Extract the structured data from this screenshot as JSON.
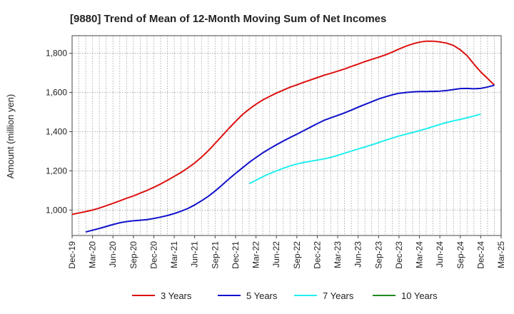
{
  "chart_data": {
    "type": "line",
    "title": "[9880]  Trend of Mean of 12-Month Moving Sum of Net Incomes",
    "ylabel": "Amount (million yen)",
    "xlabel": "",
    "ylim": [
      870,
      1890
    ],
    "yticks": [
      1000,
      1200,
      1400,
      1600,
      1800
    ],
    "ytick_labels": [
      "1,000",
      "1,200",
      "1,400",
      "1,600",
      "1,800"
    ],
    "x_start": "Dec-19",
    "x_months_total": 63,
    "xtick_labels": [
      "Dec-19",
      "Mar-20",
      "Jun-20",
      "Sep-20",
      "Dec-20",
      "Mar-21",
      "Jun-21",
      "Sep-21",
      "Dec-21",
      "Mar-22",
      "Jun-22",
      "Sep-22",
      "Dec-22",
      "Mar-23",
      "Jun-23",
      "Sep-23",
      "Dec-23",
      "Mar-24",
      "Jun-24",
      "Sep-24",
      "Dec-24",
      "Mar-25"
    ],
    "grid": true,
    "legend_position": "bottom",
    "series": [
      {
        "name": "3 Years",
        "color": "#dd1111",
        "start": "Dec-19",
        "values": [
          978,
          985,
          992,
          1000,
          1010,
          1022,
          1034,
          1047,
          1060,
          1072,
          1086,
          1100,
          1116,
          1133,
          1152,
          1172,
          1192,
          1215,
          1240,
          1270,
          1303,
          1340,
          1378,
          1416,
          1452,
          1487,
          1515,
          1540,
          1562,
          1580,
          1597,
          1612,
          1627,
          1639,
          1652,
          1664,
          1676,
          1688,
          1698,
          1709,
          1720,
          1733,
          1745,
          1758,
          1769,
          1780,
          1792,
          1806,
          1822,
          1836,
          1848,
          1857,
          1862,
          1862,
          1858,
          1852,
          1840,
          1818,
          1788,
          1745,
          1705,
          1672,
          1638
        ]
      },
      {
        "name": "5 Years",
        "color": "#1111cc",
        "start": "Feb-20",
        "values": [
          888,
          897,
          906,
          916,
          926,
          935,
          941,
          945,
          948,
          951,
          957,
          964,
          972,
          982,
          994,
          1008,
          1026,
          1047,
          1070,
          1097,
          1127,
          1158,
          1187,
          1215,
          1243,
          1268,
          1292,
          1313,
          1333,
          1352,
          1370,
          1387,
          1405,
          1423,
          1441,
          1458,
          1471,
          1483,
          1496,
          1510,
          1525,
          1539,
          1553,
          1567,
          1578,
          1588,
          1596,
          1600,
          1603,
          1605,
          1605,
          1606,
          1607,
          1610,
          1615,
          1620,
          1621,
          1619,
          1621,
          1628,
          1637
        ]
      },
      {
        "name": "7 Years",
        "color": "#22eeee",
        "start": "Feb-22",
        "values": [
          1135,
          1152,
          1170,
          1186,
          1200,
          1213,
          1225,
          1235,
          1243,
          1249,
          1255,
          1261,
          1269,
          1279,
          1290,
          1301,
          1312,
          1322,
          1333,
          1344,
          1356,
          1367,
          1378,
          1387,
          1396,
          1405,
          1415,
          1426,
          1437,
          1447,
          1455,
          1463,
          1471,
          1480,
          1490
        ]
      },
      {
        "name": "10 Years",
        "color": "#228822",
        "start": "Dec-19",
        "values": []
      }
    ]
  }
}
